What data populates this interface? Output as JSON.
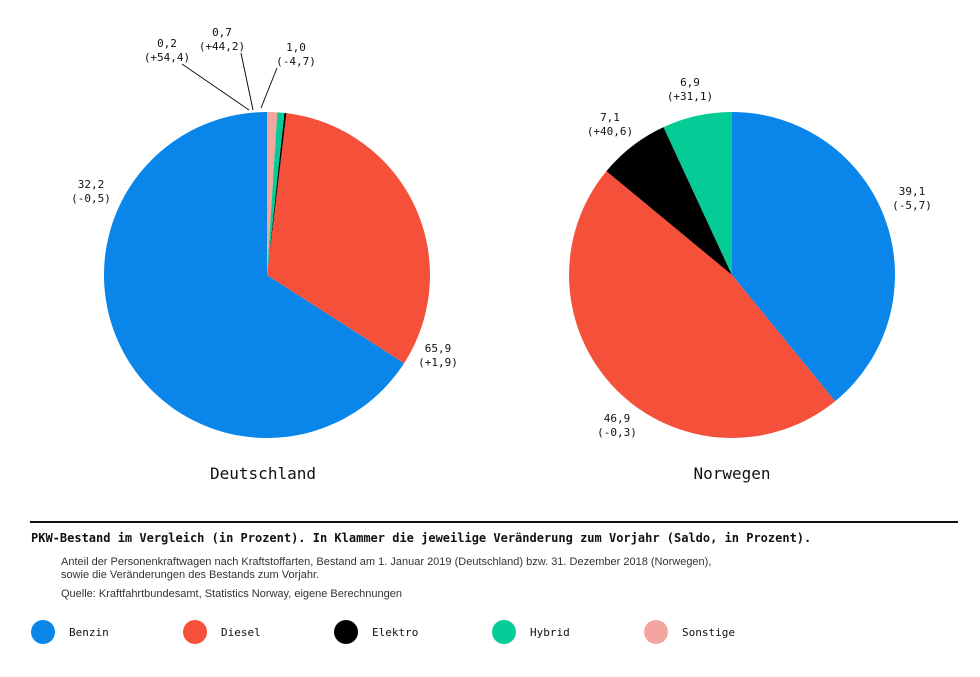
{
  "chart_data": [
    {
      "type": "pie",
      "title": "Deutschland",
      "slices": [
        {
          "category": "Benzin",
          "value": 65.9,
          "label": "65,9",
          "change": "(+1,9)"
        },
        {
          "category": "Diesel",
          "value": 32.2,
          "label": "32,2",
          "change": "(-0,5)"
        },
        {
          "category": "Elektro",
          "value": 0.2,
          "label": "0,2",
          "change": "(+54,4)"
        },
        {
          "category": "Hybrid",
          "value": 0.7,
          "label": "0,7",
          "change": "(+44,2)"
        },
        {
          "category": "Sonstige",
          "value": 1.0,
          "label": "1,0",
          "change": "(-4,7)"
        }
      ]
    },
    {
      "type": "pie",
      "title": "Norwegen",
      "slices": [
        {
          "category": "Benzin",
          "value": 39.1,
          "label": "39,1",
          "change": "(-5,7)"
        },
        {
          "category": "Diesel",
          "value": 46.9,
          "label": "46,9",
          "change": "(-0,3)"
        },
        {
          "category": "Elektro",
          "value": 7.1,
          "label": "7,1",
          "change": "(+40,6)"
        },
        {
          "category": "Hybrid",
          "value": 6.9,
          "label": "6,9",
          "change": "(+31,1)"
        }
      ]
    }
  ],
  "caption": "PKW-Bestand im Vergleich (in Prozent). In Klammer die jeweilige Veränderung zum Vorjahr (Saldo, in Prozent).",
  "note": [
    "Anteil der Personenkraftwagen nach Kraftstoffarten, Bestand am 1. Januar 2019 (Deutschland) bzw. 31. Dezember 2018 (Norwegen),",
    "sowie die Veränderungen des Bestands zum Vorjahr."
  ],
  "source": "Quelle: Kraftfahrtbundesamt, Statistics Norway, eigene Berechnungen",
  "legend": [
    {
      "name": "Benzin",
      "color": "#0a86ea"
    },
    {
      "name": "Diesel",
      "color": "#f4503a"
    },
    {
      "name": "Elektro",
      "color": "#000000"
    },
    {
      "name": "Hybrid",
      "color": "#05cc96"
    },
    {
      "name": "Sonstige",
      "color": "#f4a5a0"
    }
  ]
}
